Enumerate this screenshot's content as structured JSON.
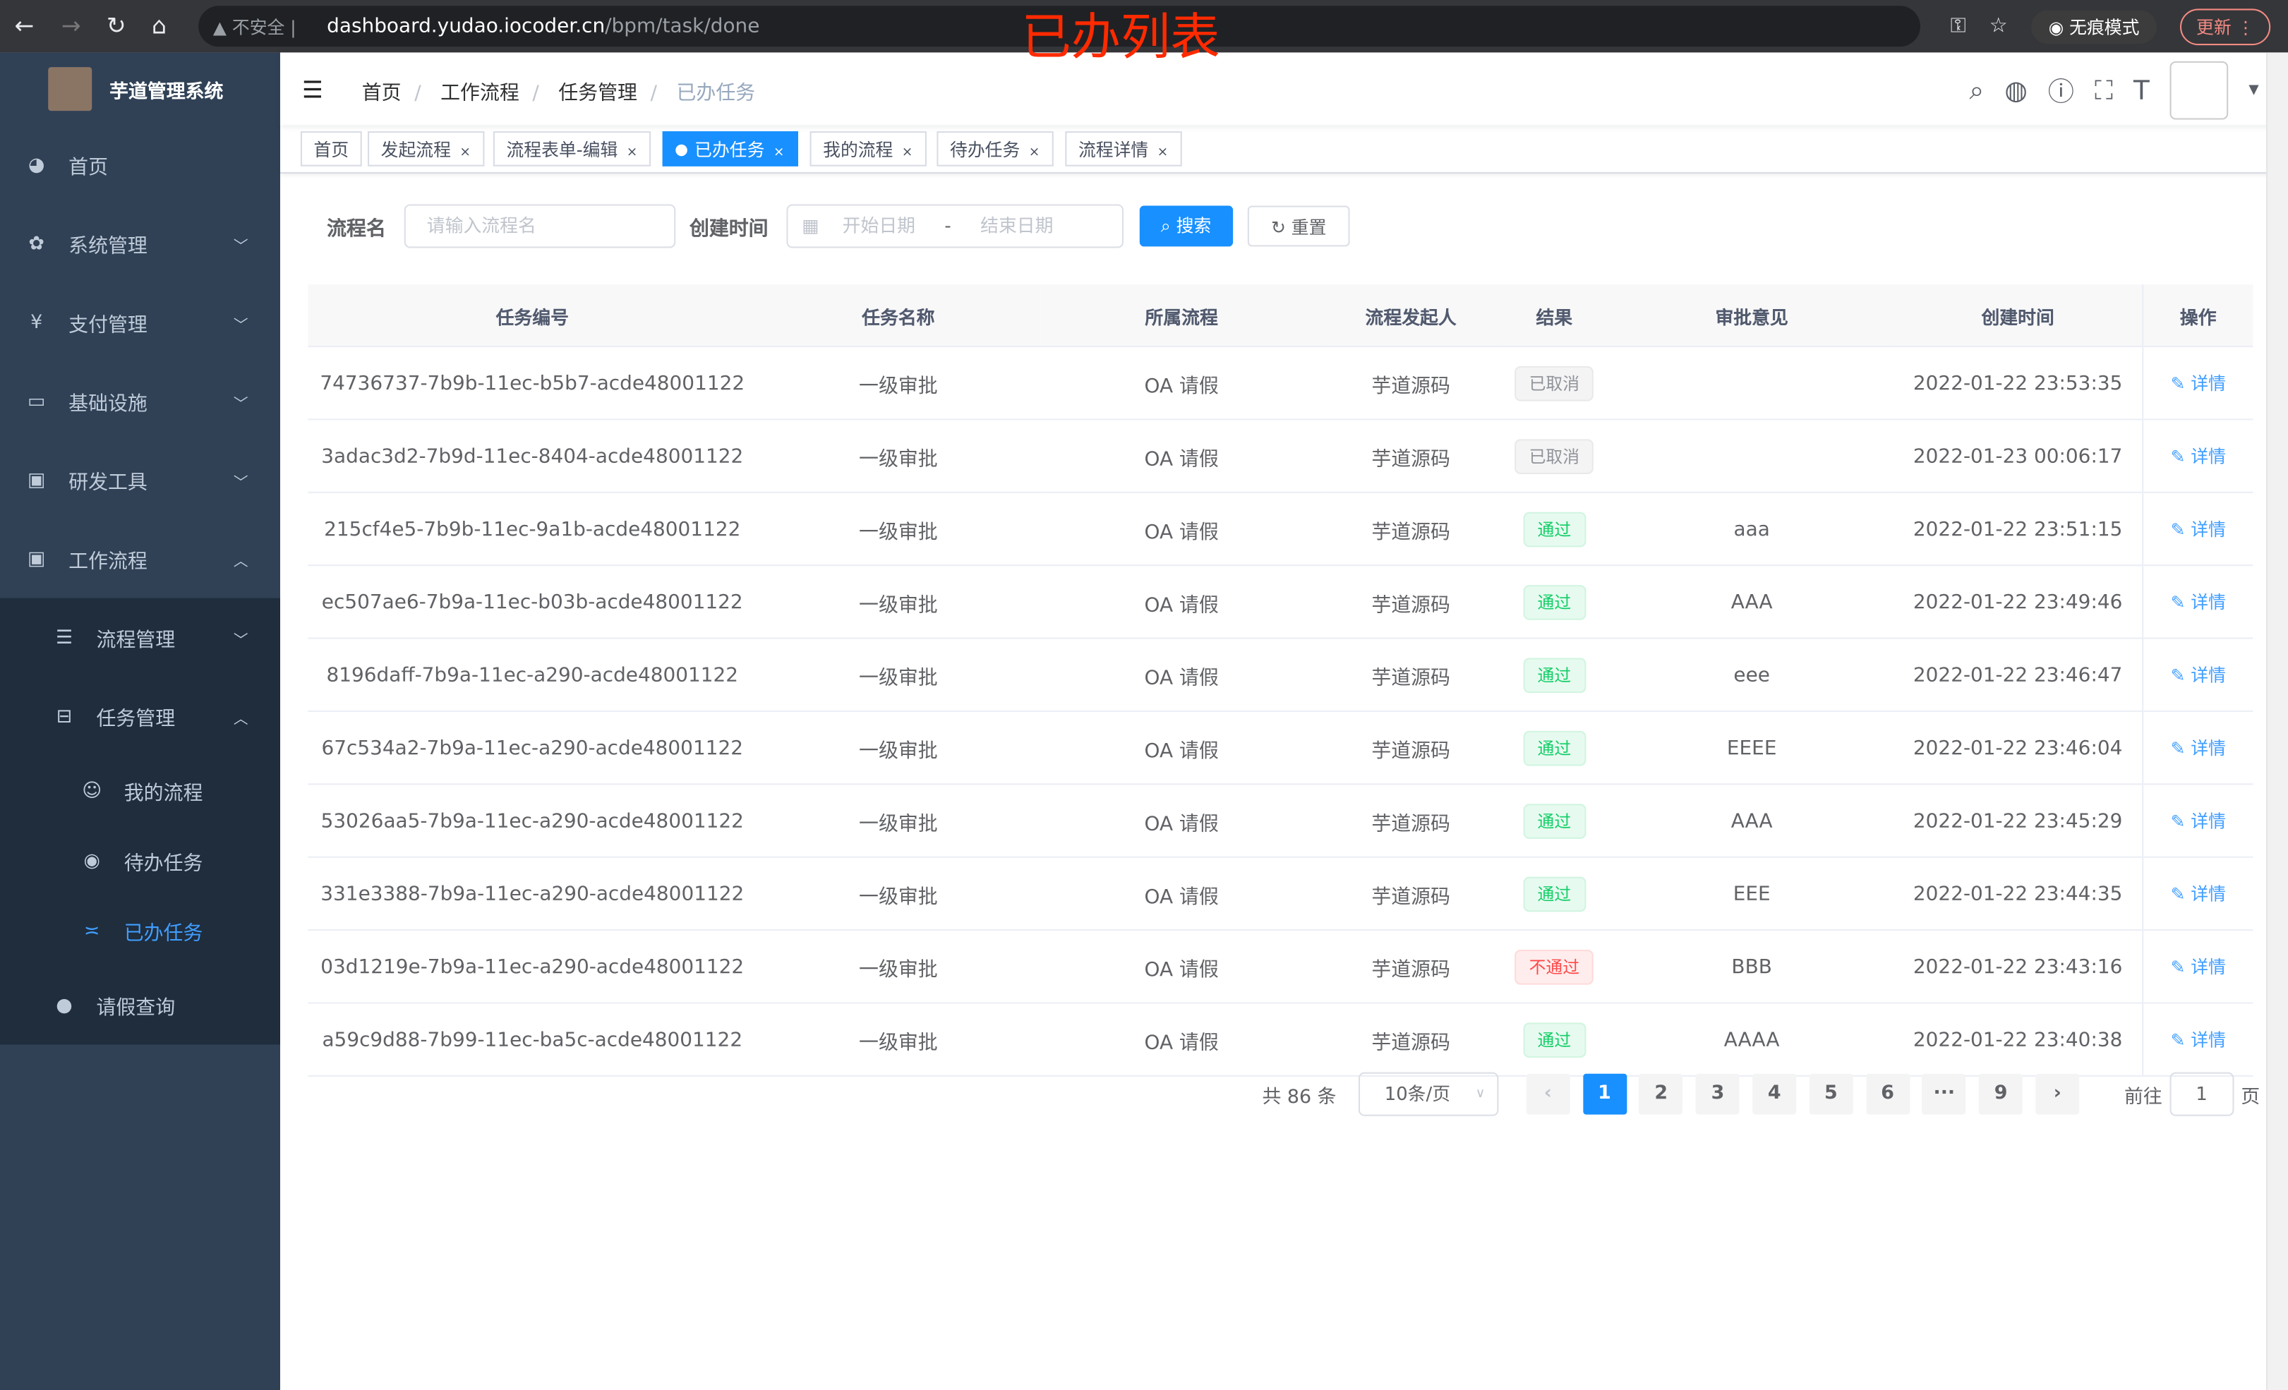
{
  "browser": {
    "insecure": "不安全",
    "url_host": "dashboard.yudao.iocoder.cn",
    "url_path": "/bpm/task/done",
    "incognito": "无痕模式",
    "update": "更新"
  },
  "overlay_title": "已办列表",
  "app": {
    "title": "芋道管理系统"
  },
  "sidebar": {
    "items": [
      {
        "label": "首页",
        "icon": "dashboard-icon"
      },
      {
        "label": "系统管理",
        "icon": "gear-icon"
      },
      {
        "label": "支付管理",
        "icon": "yen-icon"
      },
      {
        "label": "基础设施",
        "icon": "monitor-icon"
      },
      {
        "label": "研发工具",
        "icon": "toolbox-icon"
      },
      {
        "label": "工作流程",
        "icon": "toolbox-icon"
      }
    ],
    "workflow_children": [
      {
        "label": "流程管理",
        "icon": "list-icon"
      },
      {
        "label": "任务管理",
        "icon": "tree-icon"
      }
    ],
    "task_children": [
      {
        "label": "我的流程",
        "icon": "people-icon"
      },
      {
        "label": "待办任务",
        "icon": "eye-icon"
      },
      {
        "label": "已办任务",
        "icon": "finish-icon"
      }
    ],
    "leave": {
      "label": "请假查询",
      "icon": "user-icon"
    }
  },
  "breadcrumb": [
    "首页",
    "工作流程",
    "任务管理",
    "已办任务"
  ],
  "tags": [
    "首页",
    "发起流程",
    "流程表单-编辑",
    "已办任务",
    "我的流程",
    "待办任务",
    "流程详情"
  ],
  "search": {
    "name_label": "流程名",
    "name_placeholder": "请输入流程名",
    "time_label": "创建时间",
    "start_placeholder": "开始日期",
    "sep": "-",
    "end_placeholder": "结束日期",
    "search_btn": "搜索",
    "reset_btn": "重置"
  },
  "table": {
    "headers": [
      "任务编号",
      "任务名称",
      "所属流程",
      "流程发起人",
      "结果",
      "审批意见",
      "创建时间",
      "操作"
    ],
    "rows": [
      [
        "74736737-7b9b-11ec-b5b7-acde48001122",
        "一级审批",
        "OA 请假",
        "芋道源码",
        "已取消",
        "",
        "2022-01-22 23:53:35",
        "详情"
      ],
      [
        "3adac3d2-7b9d-11ec-8404-acde48001122",
        "一级审批",
        "OA 请假",
        "芋道源码",
        "已取消",
        "",
        "2022-01-23 00:06:17",
        "详情"
      ],
      [
        "215cf4e5-7b9b-11ec-9a1b-acde48001122",
        "一级审批",
        "OA 请假",
        "芋道源码",
        "通过",
        "aaa",
        "2022-01-22 23:51:15",
        "详情"
      ],
      [
        "ec507ae6-7b9a-11ec-b03b-acde48001122",
        "一级审批",
        "OA 请假",
        "芋道源码",
        "通过",
        "AAA",
        "2022-01-22 23:49:46",
        "详情"
      ],
      [
        "8196daff-7b9a-11ec-a290-acde48001122",
        "一级审批",
        "OA 请假",
        "芋道源码",
        "通过",
        "eee",
        "2022-01-22 23:46:47",
        "详情"
      ],
      [
        "67c534a2-7b9a-11ec-a290-acde48001122",
        "一级审批",
        "OA 请假",
        "芋道源码",
        "通过",
        "EEEE",
        "2022-01-22 23:46:04",
        "详情"
      ],
      [
        "53026aa5-7b9a-11ec-a290-acde48001122",
        "一级审批",
        "OA 请假",
        "芋道源码",
        "通过",
        "AAA",
        "2022-01-22 23:45:29",
        "详情"
      ],
      [
        "331e3388-7b9a-11ec-a290-acde48001122",
        "一级审批",
        "OA 请假",
        "芋道源码",
        "通过",
        "EEE",
        "2022-01-22 23:44:35",
        "详情"
      ],
      [
        "03d1219e-7b9a-11ec-a290-acde48001122",
        "一级审批",
        "OA 请假",
        "芋道源码",
        "不通过",
        "BBB",
        "2022-01-22 23:43:16",
        "详情"
      ],
      [
        "a59c9d88-7b99-11ec-ba5c-acde48001122",
        "一级审批",
        "OA 请假",
        "芋道源码",
        "通过",
        "AAAA",
        "2022-01-22 23:40:38",
        "详情"
      ]
    ]
  },
  "result_colors": {
    "已取消": "#909399",
    "通过": "#13ce66",
    "不通过": "#ff4949"
  },
  "pagination": {
    "total": "共 86 条",
    "page_size": "10条/页",
    "pages": [
      "1",
      "2",
      "3",
      "4",
      "5",
      "6",
      "···",
      "9"
    ],
    "current": "1",
    "goto_label": "前往",
    "goto_value": "1",
    "goto_suffix": "页"
  }
}
